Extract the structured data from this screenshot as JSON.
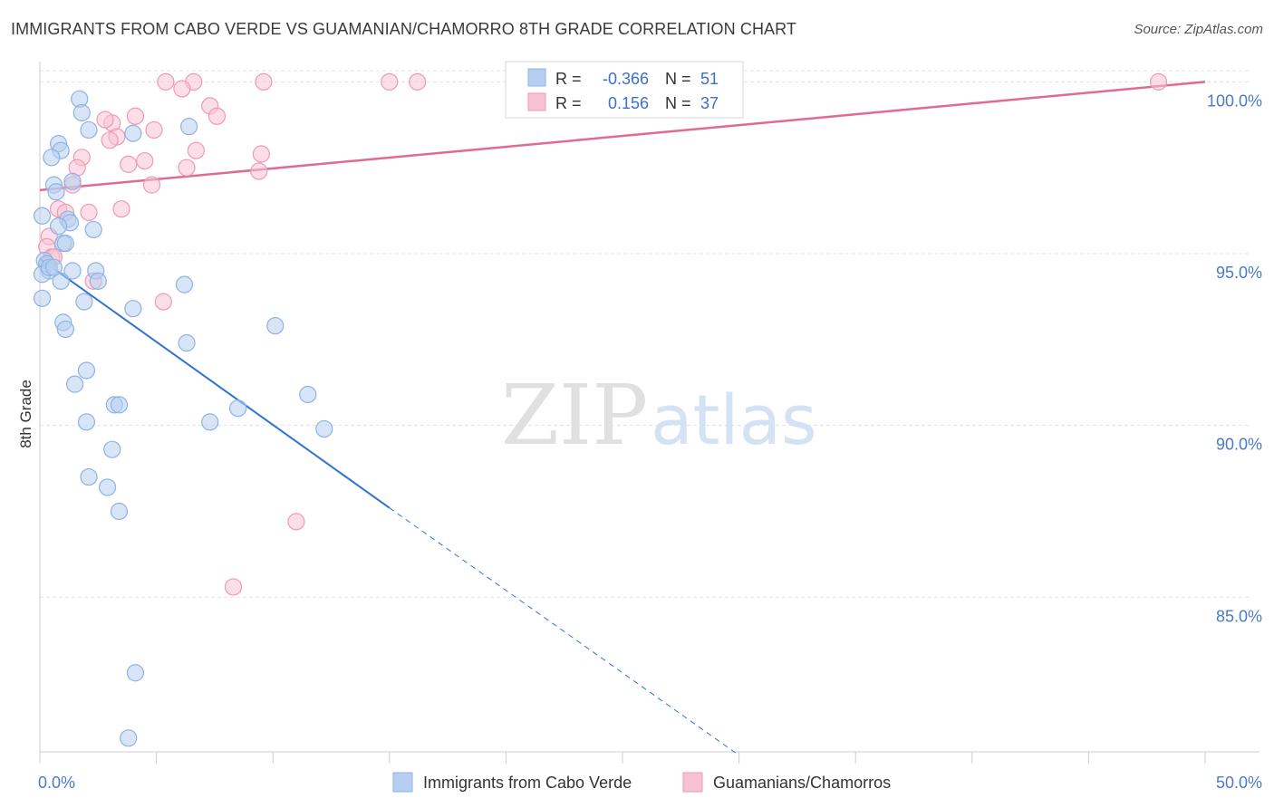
{
  "title": "IMMIGRANTS FROM CABO VERDE VS GUAMANIAN/CHAMORRO 8TH GRADE CORRELATION CHART",
  "source": "Source: ZipAtlas.com",
  "watermark": {
    "zip": "ZIP",
    "atlas": "atlas"
  },
  "colors": {
    "blue_fill": "#b6cff0",
    "blue_stroke": "#8fb2e3",
    "blue_line": "#2f74d0",
    "pink_fill": "#f7c3d3",
    "pink_stroke": "#ee9ab5",
    "pink_line": "#e06a93",
    "grid": "#e3e3e3",
    "axis": "#cccccc",
    "tick_text": "#4a7ac8"
  },
  "legend": {
    "rows": [
      {
        "r_label": "R =",
        "r_value": "-0.366",
        "n_label": "N =",
        "n_value": "51"
      },
      {
        "r_label": "R =",
        "r_value": "0.156",
        "n_label": "N =",
        "n_value": "37"
      }
    ]
  },
  "chart_data": {
    "type": "scatter",
    "title": "IMMIGRANTS FROM CABO VERDE VS GUAMANIAN/CHAMORRO 8TH GRADE CORRELATION CHART",
    "xlabel": "",
    "ylabel": "8th Grade",
    "xlim": [
      0,
      50
    ],
    "ylim": [
      80.5,
      100.8
    ],
    "x_tick_labels": [
      "0.0%",
      "50.0%"
    ],
    "y_ticks": [
      85,
      90,
      95,
      100
    ],
    "y_tick_labels": [
      "85.0%",
      "90.0%",
      "95.0%",
      "100.0%"
    ],
    "grid": true,
    "series": [
      {
        "name": "Immigrants from Cabo Verde",
        "r": -0.366,
        "n": 51,
        "trend": {
          "x0": 0,
          "y0": 94.85,
          "x1": 15,
          "y1": 87.6,
          "dash_to_x": 30,
          "dash_to_y": 80.4
        },
        "points": [
          [
            1.7,
            99.5
          ],
          [
            1.8,
            99.1
          ],
          [
            2.1,
            98.6
          ],
          [
            4.0,
            98.5
          ],
          [
            6.4,
            98.7
          ],
          [
            0.8,
            98.2
          ],
          [
            0.9,
            98.0
          ],
          [
            0.5,
            97.8
          ],
          [
            1.4,
            97.1
          ],
          [
            0.6,
            97.0
          ],
          [
            0.7,
            96.8
          ],
          [
            0.1,
            96.1
          ],
          [
            1.2,
            96.0
          ],
          [
            1.3,
            95.9
          ],
          [
            0.8,
            95.8
          ],
          [
            2.3,
            95.7
          ],
          [
            1.0,
            95.3
          ],
          [
            1.1,
            95.3
          ],
          [
            0.2,
            94.8
          ],
          [
            0.3,
            94.7
          ],
          [
            0.4,
            94.5
          ],
          [
            1.4,
            94.5
          ],
          [
            2.4,
            94.5
          ],
          [
            0.1,
            94.4
          ],
          [
            0.9,
            94.2
          ],
          [
            2.5,
            94.2
          ],
          [
            6.2,
            94.1
          ],
          [
            0.1,
            93.7
          ],
          [
            1.9,
            93.6
          ],
          [
            4.0,
            93.4
          ],
          [
            1.0,
            93.0
          ],
          [
            1.1,
            92.8
          ],
          [
            10.1,
            92.9
          ],
          [
            6.3,
            92.4
          ],
          [
            2.0,
            91.6
          ],
          [
            1.5,
            91.2
          ],
          [
            11.5,
            90.9
          ],
          [
            3.2,
            90.6
          ],
          [
            3.4,
            90.6
          ],
          [
            8.5,
            90.5
          ],
          [
            2.0,
            90.1
          ],
          [
            7.3,
            90.1
          ],
          [
            12.2,
            89.9
          ],
          [
            3.1,
            89.3
          ],
          [
            2.1,
            88.5
          ],
          [
            2.9,
            88.2
          ],
          [
            3.4,
            87.5
          ],
          [
            4.1,
            82.8
          ],
          [
            3.8,
            80.9
          ],
          [
            0.4,
            94.6
          ],
          [
            0.6,
            94.6
          ]
        ]
      },
      {
        "name": "Guamanians/Chamorros",
        "r": 0.156,
        "n": 37,
        "trend": {
          "x0": 0,
          "y0": 96.85,
          "x1": 50,
          "y1": 100.0
        },
        "points": [
          [
            5.4,
            100.0
          ],
          [
            6.6,
            100.0
          ],
          [
            9.6,
            100.0
          ],
          [
            15.0,
            100.0
          ],
          [
            16.2,
            100.0
          ],
          [
            48.0,
            100.0
          ],
          [
            6.1,
            99.8
          ],
          [
            7.3,
            99.3
          ],
          [
            7.6,
            99.0
          ],
          [
            4.1,
            99.0
          ],
          [
            3.1,
            98.8
          ],
          [
            2.8,
            98.9
          ],
          [
            4.9,
            98.6
          ],
          [
            3.3,
            98.4
          ],
          [
            3.0,
            98.3
          ],
          [
            6.7,
            98.0
          ],
          [
            9.5,
            97.9
          ],
          [
            1.8,
            97.8
          ],
          [
            4.5,
            97.7
          ],
          [
            3.8,
            97.6
          ],
          [
            1.6,
            97.5
          ],
          [
            6.3,
            97.5
          ],
          [
            9.4,
            97.4
          ],
          [
            1.4,
            97.0
          ],
          [
            4.8,
            97.0
          ],
          [
            0.8,
            96.3
          ],
          [
            1.1,
            96.2
          ],
          [
            2.1,
            96.2
          ],
          [
            3.5,
            96.3
          ],
          [
            0.4,
            95.5
          ],
          [
            0.3,
            95.2
          ],
          [
            0.5,
            94.9
          ],
          [
            0.6,
            94.9
          ],
          [
            2.3,
            94.2
          ],
          [
            5.3,
            93.6
          ],
          [
            11.0,
            87.2
          ],
          [
            8.3,
            85.3
          ]
        ]
      }
    ]
  }
}
